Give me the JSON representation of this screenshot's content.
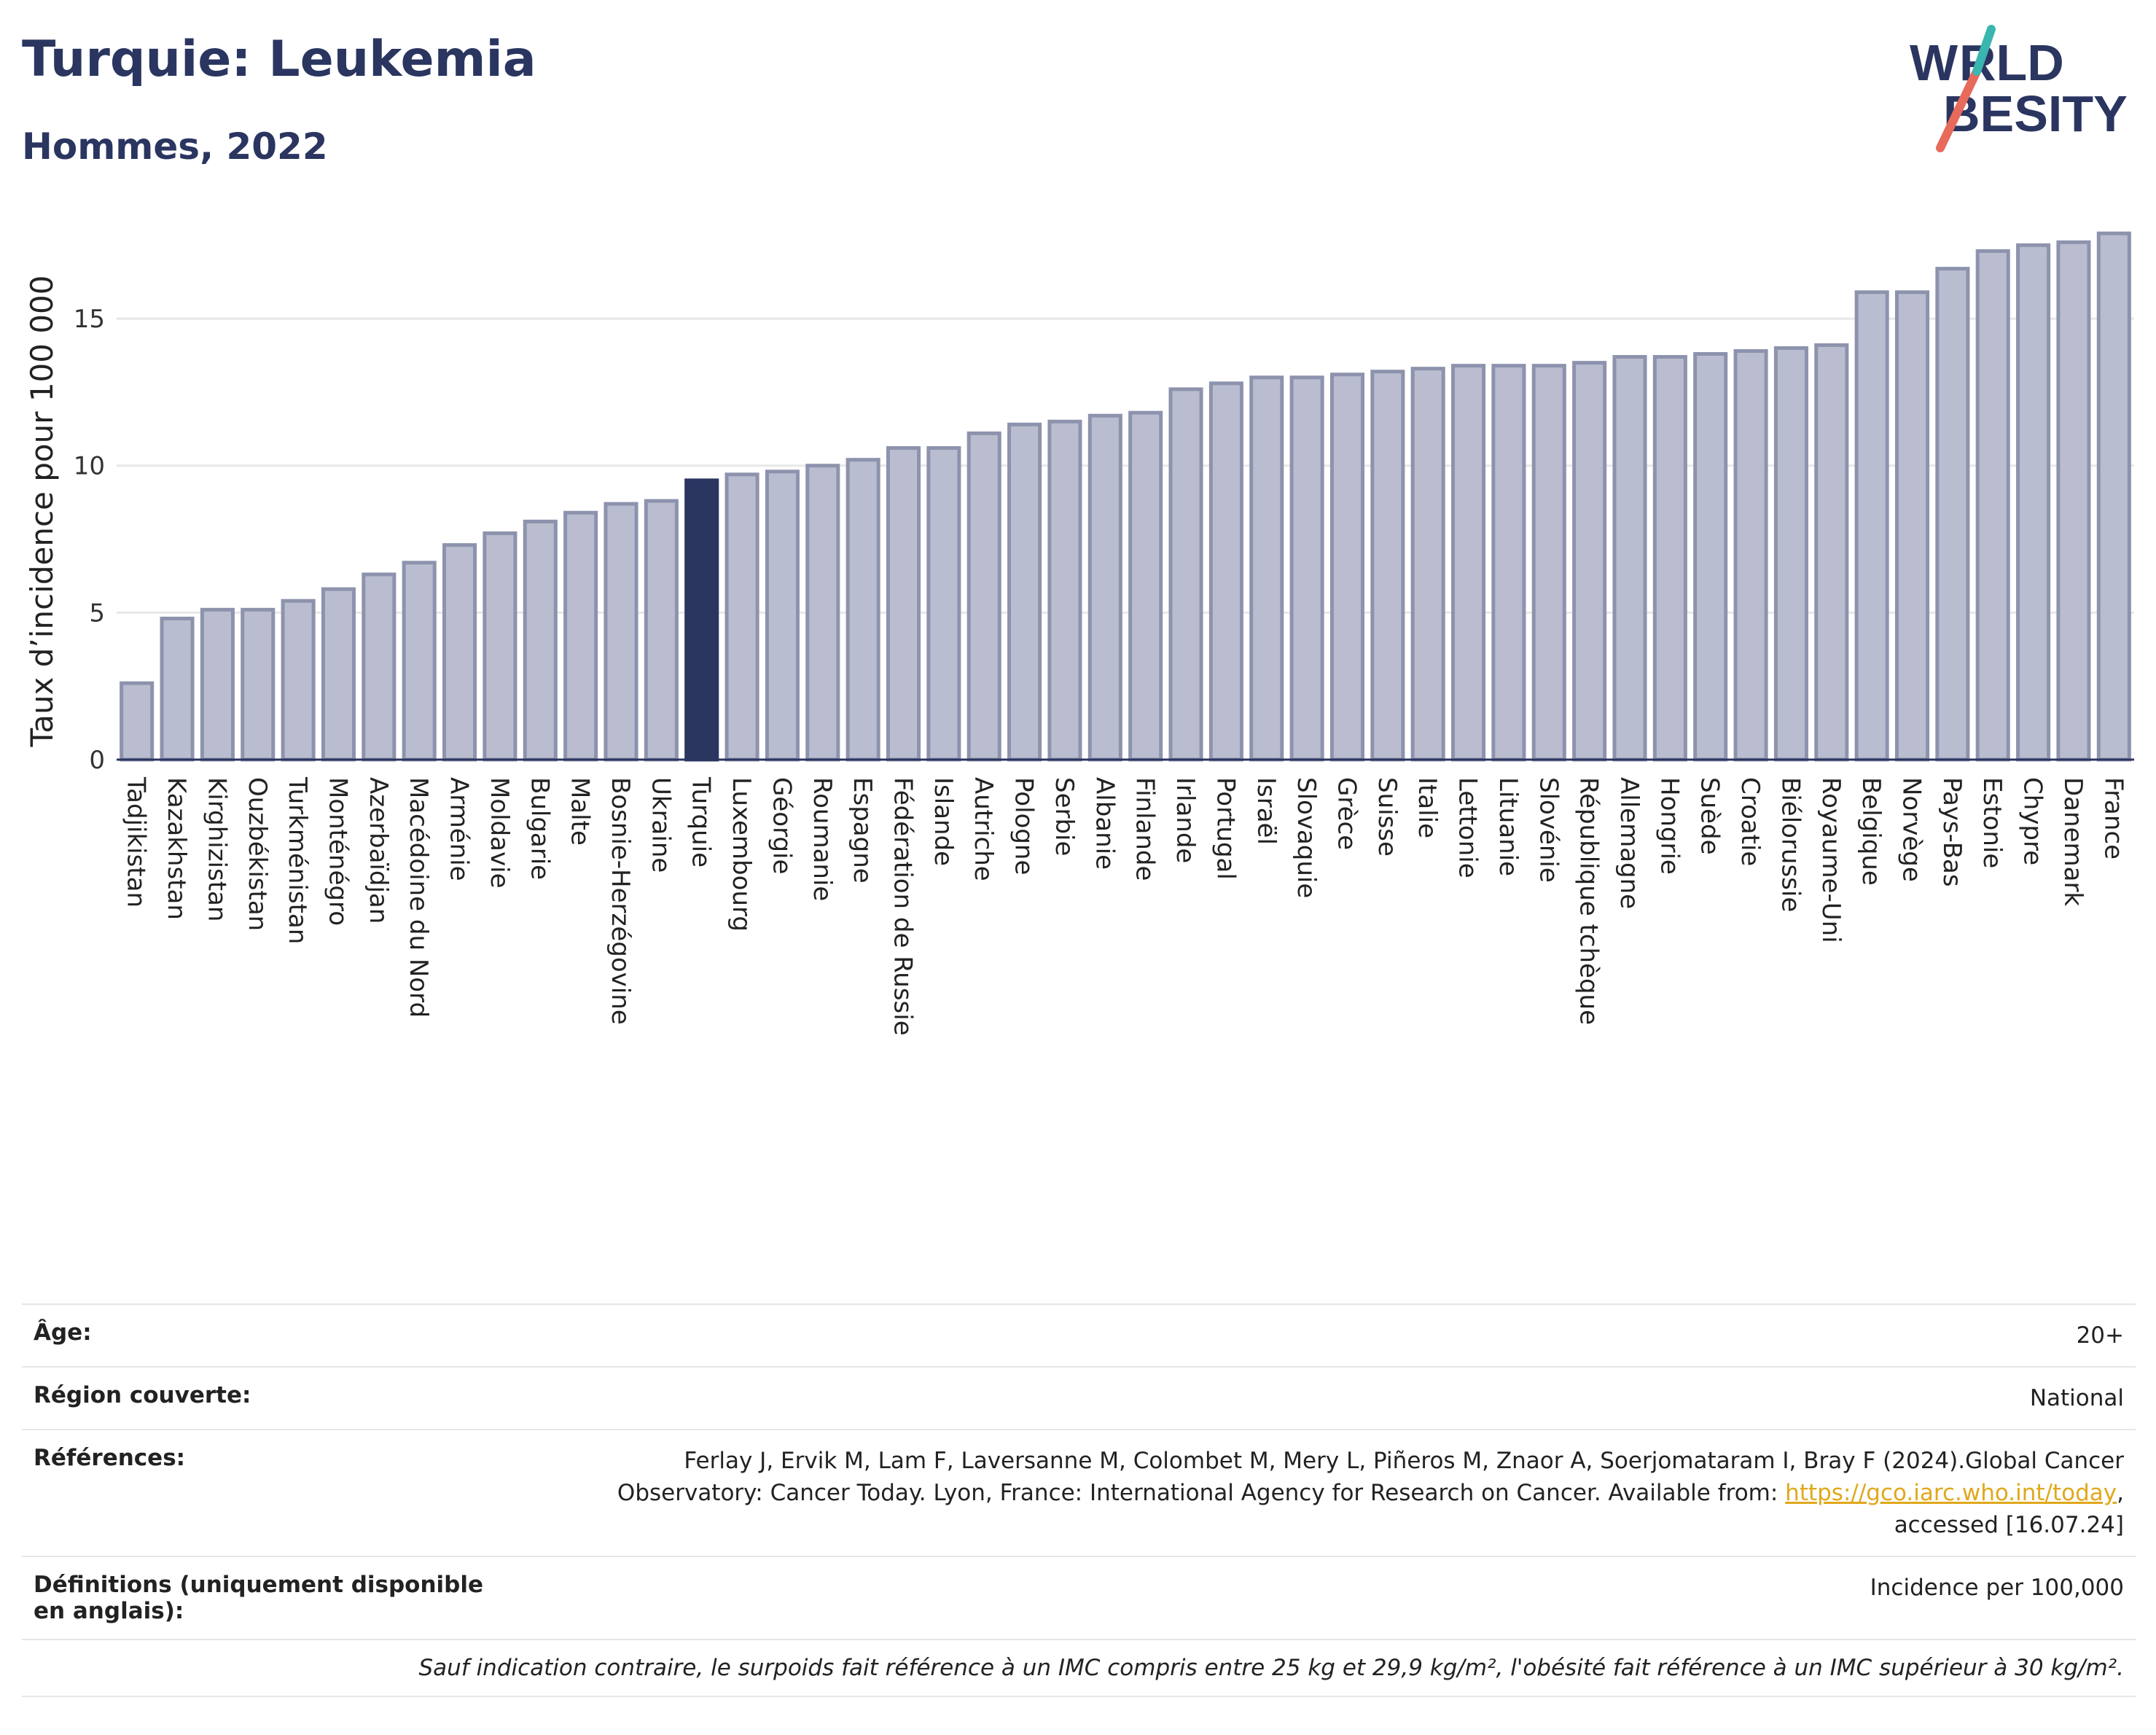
{
  "header": {
    "title": "Turquie: Leukemia",
    "subtitle": "Hommes, 2022",
    "logo_text": "WORLD OBESITY"
  },
  "colors": {
    "title": "#2a3560",
    "bar": "#b9bdcf",
    "bar_border": "#8d93ad",
    "highlight": "#2a3560",
    "link": "#e0a81b"
  },
  "chart_data": {
    "type": "bar",
    "title": "Turquie: Leukemia",
    "subtitle": "Hommes, 2022",
    "ylabel": "Taux d’incidence pour 100 000",
    "xlabel": "",
    "ylim": [
      0,
      18.4
    ],
    "yticks": [
      0,
      5,
      10,
      15
    ],
    "grid": true,
    "highlight": "Turquie",
    "categories": [
      "Tadjikistan",
      "Kazakhstan",
      "Kirghizistan",
      "Ouzbékistan",
      "Turkménistan",
      "Monténégro",
      "Azerbaïdjan",
      "Macédoine du Nord",
      "Arménie",
      "Moldavie",
      "Bulgarie",
      "Malte",
      "Bosnie-Herzégovine",
      "Ukraine",
      "Turquie",
      "Luxembourg",
      "Géorgie",
      "Roumanie",
      "Espagne",
      "Fédération de Russie",
      "Islande",
      "Autriche",
      "Pologne",
      "Serbie",
      "Albanie",
      "Finlande",
      "Irlande",
      "Portugal",
      "Israël",
      "Slovaquie",
      "Grèce",
      "Suisse",
      "Italie",
      "Lettonie",
      "Lituanie",
      "Slovénie",
      "République tchèque",
      "Allemagne",
      "Hongrie",
      "Suède",
      "Croatie",
      "Biélorussie",
      "Royaume-Uni",
      "Belgique",
      "Norvège",
      "Pays-Bas",
      "Estonie",
      "Chypre",
      "Danemark",
      "France"
    ],
    "values": [
      2.6,
      4.8,
      5.1,
      5.1,
      5.4,
      5.8,
      6.3,
      6.7,
      7.3,
      7.7,
      8.1,
      8.4,
      8.7,
      8.8,
      9.5,
      9.7,
      9.8,
      10.0,
      10.2,
      10.6,
      10.6,
      11.1,
      11.4,
      11.5,
      11.7,
      11.8,
      12.6,
      12.8,
      13.0,
      13.0,
      13.1,
      13.2,
      13.3,
      13.4,
      13.4,
      13.4,
      13.5,
      13.7,
      13.7,
      13.8,
      13.9,
      14.0,
      14.1,
      15.9,
      15.9,
      16.7,
      17.3,
      17.5,
      17.6,
      17.9
    ]
  },
  "meta": {
    "age_label": "Âge:",
    "age_value": "20+",
    "region_label": "Région couverte:",
    "region_value": "National",
    "refs_label": "Références:",
    "refs_text": "Ferlay J, Ervik M, Lam F, Laversanne M, Colombet M, Mery L, Piñeros M, Znaor A, Soerjomataram I, Bray F (2024).Global Cancer Observatory: Cancer Today. Lyon, France: International Agency for Research on Cancer. Available from: ",
    "refs_link": "https://gco.iarc.who.int/today",
    "refs_tail": ", accessed [16.07.24]",
    "defs_label": "Définitions (uniquement disponible en anglais):",
    "defs_value": "Incidence per 100,000",
    "note": "Sauf indication contraire, le surpoids fait référence à un IMC compris entre 25 kg et 29,9 kg/m², l'obésité fait référence à un IMC supérieur à 30 kg/m²."
  }
}
